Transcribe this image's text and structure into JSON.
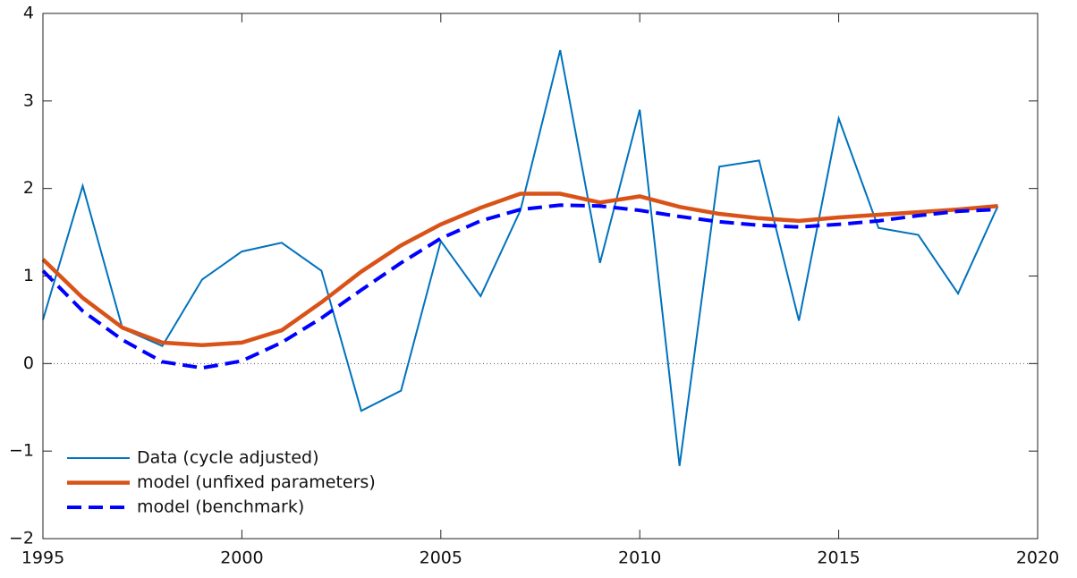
{
  "chart_data": {
    "type": "line",
    "x": [
      1995,
      1996,
      1997,
      1998,
      1999,
      2000,
      2001,
      2002,
      2003,
      2004,
      2005,
      2006,
      2007,
      2008,
      2009,
      2010,
      2011,
      2012,
      2013,
      2014,
      2015,
      2016,
      2017,
      2018,
      2019
    ],
    "series": [
      {
        "name": "Data (cycle adjusted)",
        "color": "#0072bd",
        "linestyle": "solid",
        "values": [
          0.5,
          2.03,
          0.4,
          0.2,
          0.96,
          1.28,
          1.38,
          1.06,
          -0.54,
          -0.31,
          1.4,
          0.77,
          1.75,
          3.58,
          1.15,
          2.9,
          -1.17,
          2.25,
          2.32,
          0.49,
          2.8,
          1.55,
          1.47,
          0.8,
          1.8
        ]
      },
      {
        "name": "model (unfixed parameters)",
        "color": "#d95319",
        "linestyle": "solid",
        "values": [
          1.19,
          0.75,
          0.41,
          0.24,
          0.21,
          0.24,
          0.38,
          0.7,
          1.05,
          1.35,
          1.59,
          1.78,
          1.94,
          1.94,
          1.84,
          1.91,
          1.79,
          1.71,
          1.66,
          1.63,
          1.67,
          1.7,
          1.73,
          1.76,
          1.8
        ]
      },
      {
        "name": "model (benchmark)",
        "color": "#0000ff",
        "linestyle": "dashed",
        "values": [
          1.06,
          0.6,
          0.27,
          0.02,
          -0.05,
          0.03,
          0.24,
          0.52,
          0.84,
          1.15,
          1.43,
          1.63,
          1.76,
          1.81,
          1.8,
          1.75,
          1.68,
          1.62,
          1.58,
          1.56,
          1.59,
          1.63,
          1.69,
          1.74,
          1.76
        ]
      }
    ],
    "xlim": [
      1995,
      2020
    ],
    "xticks": [
      1995,
      2000,
      2005,
      2010,
      2015,
      2020
    ],
    "ylim": [
      -2,
      4
    ],
    "yticks": [
      {
        "value": -2,
        "label": "−2"
      },
      {
        "value": -1,
        "label": "−1"
      },
      0,
      1,
      2,
      3,
      4
    ],
    "zero_line": true,
    "legend": "lower left"
  }
}
